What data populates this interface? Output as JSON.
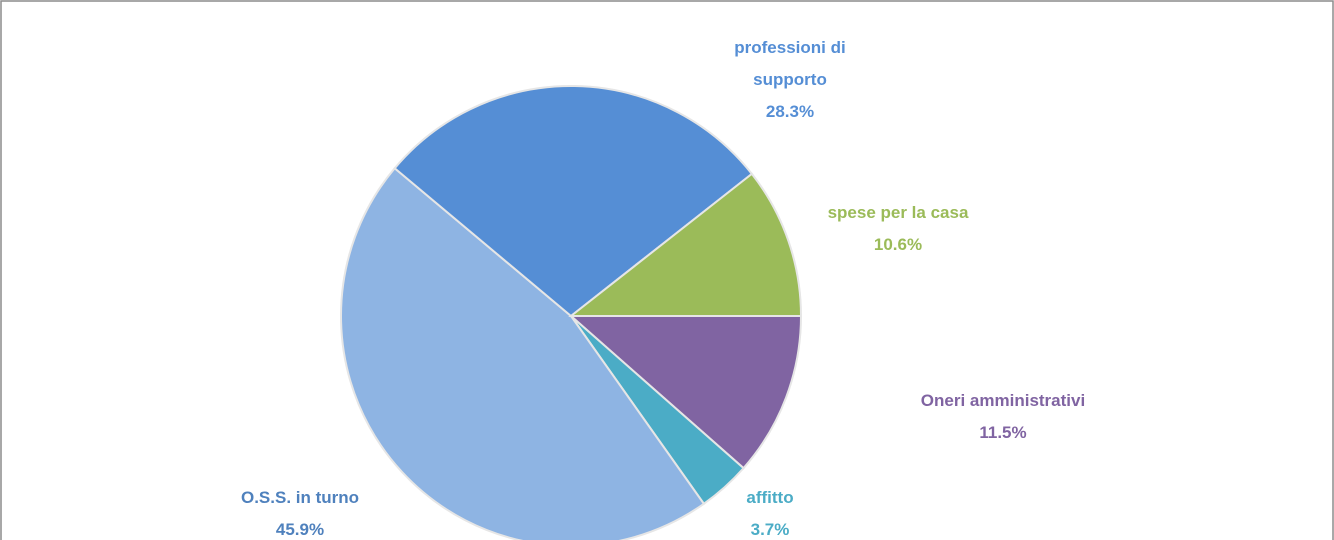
{
  "chart_data": {
    "type": "pie",
    "categories": [
      "Oneri amministrativi",
      "affitto",
      "O.S.S. in turno",
      "professioni di supporto",
      "spese per la casa"
    ],
    "values": [
      11.5,
      3.7,
      45.9,
      28.3,
      10.6
    ],
    "value_labels": [
      "11.5%",
      "3.7%",
      "45.9%",
      "28.3%",
      "10.6%"
    ],
    "colors": [
      "#8064a2",
      "#4bacc6",
      "#8eb4e3",
      "#558ed5",
      "#9bbb59"
    ],
    "label_colors": [
      "#8064a2",
      "#4bacc6",
      "#4f81bd",
      "#558ed5",
      "#9bbb59"
    ]
  }
}
